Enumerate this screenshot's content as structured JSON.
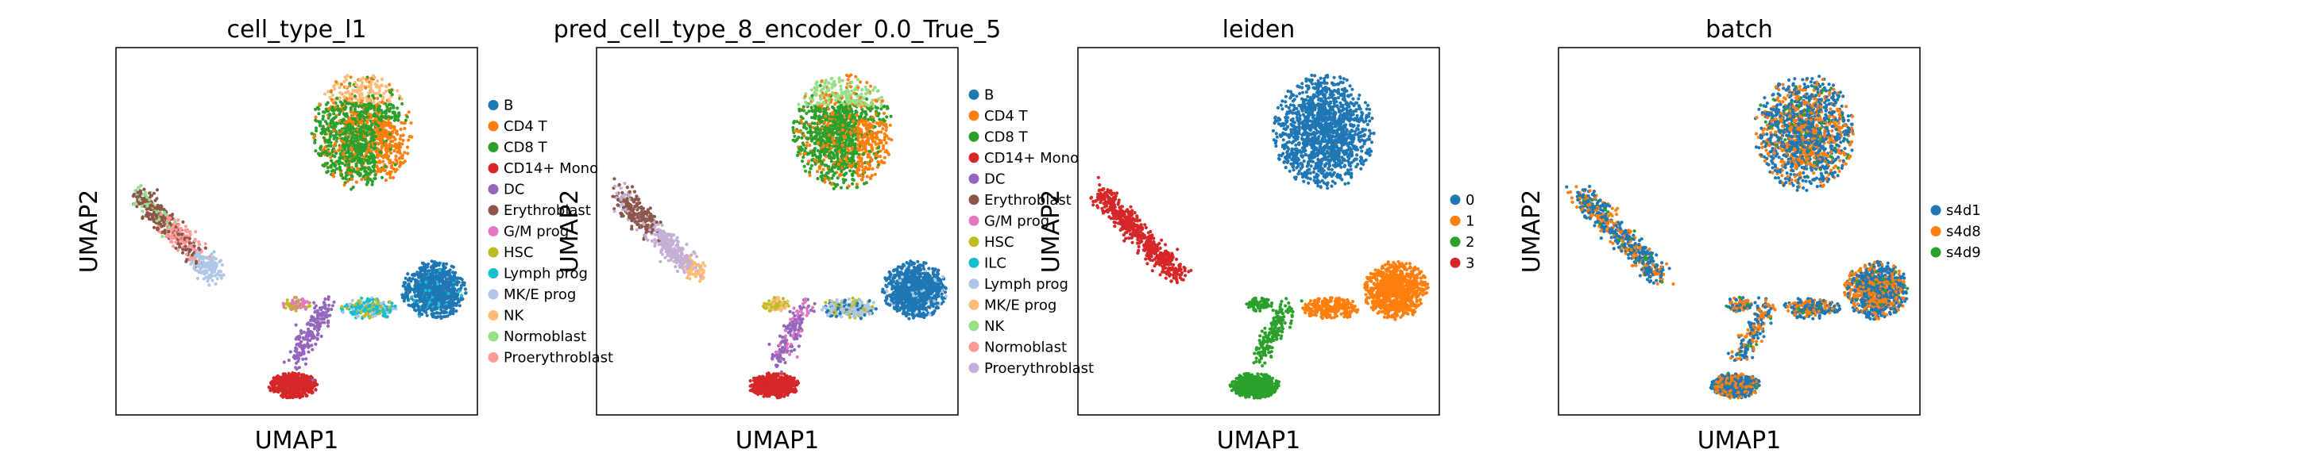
{
  "colors": {
    "tab10": [
      "#1f77b4",
      "#ff7f0e",
      "#2ca02c",
      "#d62728",
      "#9467bd",
      "#8c564b",
      "#e377c2",
      "#bcbd22",
      "#17becf",
      "#aec7e8",
      "#ffbb78",
      "#98df8a",
      "#ff9896",
      "#c5b0d5"
    ]
  },
  "chart_data": [
    {
      "type": "scatter",
      "title": "cell_type_l1",
      "xlabel": "UMAP1",
      "ylabel": "UMAP2",
      "grid": false,
      "legend_position": "right",
      "categories": [
        "B",
        "CD4 T",
        "CD8 T",
        "CD14+ Mono",
        "DC",
        "Erythroblast",
        "G/M prog",
        "HSC",
        "Lymph prog",
        "MK/E prog",
        "NK",
        "Normoblast",
        "Proerythroblast"
      ],
      "legend_colors": [
        "#1f77b4",
        "#ff7f0e",
        "#2ca02c",
        "#d62728",
        "#9467bd",
        "#8c564b",
        "#e377c2",
        "#bcbd22",
        "#17becf",
        "#aec7e8",
        "#ffbb78",
        "#98df8a",
        "#ff9896"
      ]
    },
    {
      "type": "scatter",
      "title": "pred_cell_type_8_encoder_0.0_True_5",
      "xlabel": "UMAP1",
      "ylabel": "UMAP2",
      "grid": false,
      "legend_position": "right",
      "categories": [
        "B",
        "CD4 T",
        "CD8 T",
        "CD14+ Mono",
        "DC",
        "Erythroblast",
        "G/M prog",
        "HSC",
        "ILC",
        "Lymph prog",
        "MK/E prog",
        "NK",
        "Normoblast",
        "Proerythroblast"
      ],
      "legend_colors": [
        "#1f77b4",
        "#ff7f0e",
        "#2ca02c",
        "#d62728",
        "#9467bd",
        "#8c564b",
        "#e377c2",
        "#bcbd22",
        "#17becf",
        "#aec7e8",
        "#ffbb78",
        "#98df8a",
        "#ff9896",
        "#c5b0d5"
      ]
    },
    {
      "type": "scatter",
      "title": "leiden",
      "xlabel": "UMAP1",
      "ylabel": "UMAP2",
      "grid": false,
      "legend_position": "right",
      "categories": [
        "0",
        "1",
        "2",
        "3"
      ],
      "legend_colors": [
        "#1f77b4",
        "#ff7f0e",
        "#2ca02c",
        "#d62728"
      ]
    },
    {
      "type": "scatter",
      "title": "batch",
      "xlabel": "UMAP1",
      "ylabel": "UMAP2",
      "grid": false,
      "legend_position": "right",
      "categories": [
        "s4d1",
        "s4d8",
        "s4d9"
      ],
      "legend_colors": [
        "#1f77b4",
        "#ff7f0e",
        "#2ca02c"
      ]
    }
  ]
}
